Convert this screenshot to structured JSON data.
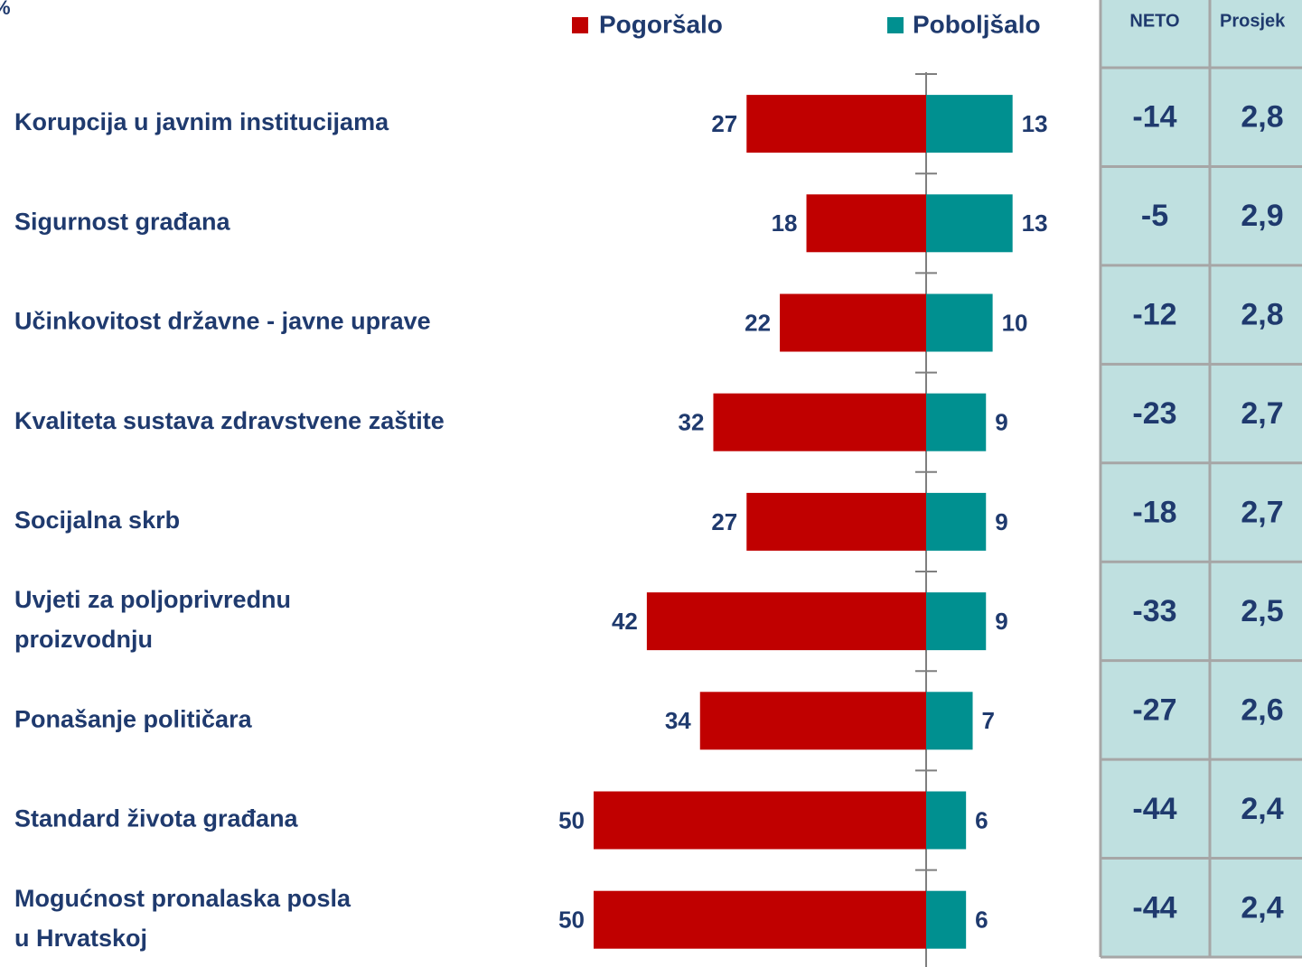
{
  "chart_data": {
    "type": "diverging_bar",
    "unit": "%",
    "categories": [
      [
        "Korupcija u javnim institucijama"
      ],
      [
        "Sigurnost građana"
      ],
      [
        "Učinkovitost državne - javne uprave"
      ],
      [
        "Kvaliteta sustava zdravstvene zaštite"
      ],
      [
        "Socijalna skrb"
      ],
      [
        "Uvjeti za poljoprivrednu",
        "proizvodnju"
      ],
      [
        "Ponašanje političara"
      ],
      [
        "Standard života građana"
      ],
      [
        "Mogućnost pronalaska posla",
        "u Hrvatskoj"
      ]
    ],
    "series": [
      {
        "name": "Pogoršalo",
        "color": "#c00000",
        "direction": "left",
        "values": [
          27,
          18,
          22,
          32,
          27,
          42,
          34,
          50,
          50
        ]
      },
      {
        "name": "Poboljšalo",
        "color": "#009090",
        "direction": "right",
        "values": [
          13,
          13,
          10,
          9,
          9,
          9,
          7,
          6,
          6
        ]
      }
    ],
    "table": {
      "columns": [
        "NETO",
        "Prosjek"
      ],
      "rows": [
        [
          -14,
          "2,8"
        ],
        [
          -5,
          "2,9"
        ],
        [
          -12,
          "2,8"
        ],
        [
          -23,
          "2,7"
        ],
        [
          -18,
          "2,7"
        ],
        [
          -33,
          "2,5"
        ],
        [
          -27,
          "2,6"
        ],
        [
          -44,
          "2,4"
        ],
        [
          -44,
          "2,4"
        ]
      ],
      "background": "#bfe0e0"
    }
  }
}
